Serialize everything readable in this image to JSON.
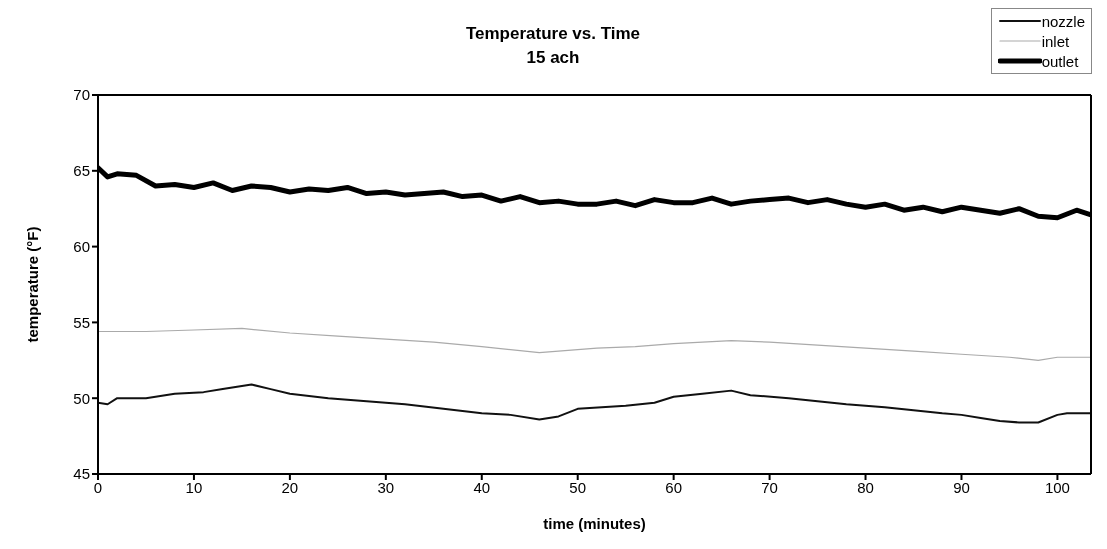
{
  "chart_data": {
    "type": "line",
    "title": "Temperature vs. Time",
    "subtitle": "15 ach",
    "xlabel": "time (minutes)",
    "ylabel": "temperature (°F)",
    "xlim": [
      0,
      103.5
    ],
    "xticks": [
      0,
      10,
      20,
      30,
      40,
      50,
      60,
      70,
      80,
      90,
      100
    ],
    "ylim": [
      45,
      70
    ],
    "yticks": [
      45,
      50,
      55,
      60,
      65,
      70
    ],
    "legend": "top right",
    "marker": "none",
    "line_style": "solid",
    "series": [
      {
        "name": "nozzle",
        "color": "#111111",
        "x": [
          0,
          1,
          2,
          5,
          8,
          11,
          13,
          16,
          18,
          20,
          24,
          28,
          32,
          36,
          40,
          43,
          46,
          48,
          50,
          55,
          58,
          60,
          63,
          66,
          68,
          72,
          75,
          78,
          82,
          85,
          88,
          90,
          92,
          94,
          96,
          98,
          100,
          101,
          103.5
        ],
        "values": [
          49.7,
          49.6,
          50.0,
          50.0,
          50.3,
          50.4,
          50.6,
          50.9,
          50.6,
          50.3,
          50.0,
          49.8,
          49.6,
          49.3,
          49.0,
          48.9,
          48.6,
          48.8,
          49.3,
          49.5,
          49.7,
          50.1,
          50.3,
          50.5,
          50.2,
          50.0,
          49.8,
          49.6,
          49.4,
          49.2,
          49.0,
          48.9,
          48.7,
          48.5,
          48.4,
          48.4,
          48.9,
          49.0,
          49.0
        ]
      },
      {
        "name": "inlet",
        "color": "#aaaaaa",
        "x": [
          0,
          5,
          10,
          15,
          20,
          25,
          30,
          35,
          40,
          46,
          52,
          56,
          60,
          66,
          70,
          75,
          80,
          85,
          90,
          95,
          98,
          100,
          103.5
        ],
        "values": [
          54.4,
          54.4,
          54.5,
          54.6,
          54.3,
          54.1,
          53.9,
          53.7,
          53.4,
          53.0,
          53.3,
          53.4,
          53.6,
          53.8,
          53.7,
          53.5,
          53.3,
          53.1,
          52.9,
          52.7,
          52.5,
          52.7,
          52.7
        ]
      },
      {
        "name": "outlet",
        "color": "#000000",
        "x": [
          0,
          1,
          2,
          4,
          6,
          8,
          10,
          12,
          14,
          16,
          18,
          20,
          22,
          24,
          26,
          28,
          30,
          32,
          34,
          36,
          38,
          40,
          42,
          44,
          46,
          48,
          50,
          52,
          54,
          56,
          58,
          60,
          62,
          64,
          66,
          68,
          70,
          72,
          74,
          76,
          78,
          80,
          82,
          84,
          86,
          88,
          90,
          92,
          94,
          96,
          98,
          100,
          102,
          103.5
        ],
        "values": [
          65.2,
          64.6,
          64.8,
          64.7,
          64.0,
          64.1,
          63.9,
          64.2,
          63.7,
          64.0,
          63.9,
          63.6,
          63.8,
          63.7,
          63.9,
          63.5,
          63.6,
          63.4,
          63.5,
          63.6,
          63.3,
          63.4,
          63.0,
          63.3,
          62.9,
          63.0,
          62.8,
          62.8,
          63.0,
          62.7,
          63.1,
          62.9,
          62.9,
          63.2,
          62.8,
          63.0,
          63.1,
          63.2,
          62.9,
          63.1,
          62.8,
          62.6,
          62.8,
          62.4,
          62.6,
          62.3,
          62.6,
          62.4,
          62.2,
          62.5,
          62.0,
          61.9,
          62.4,
          62.1
        ]
      }
    ]
  }
}
